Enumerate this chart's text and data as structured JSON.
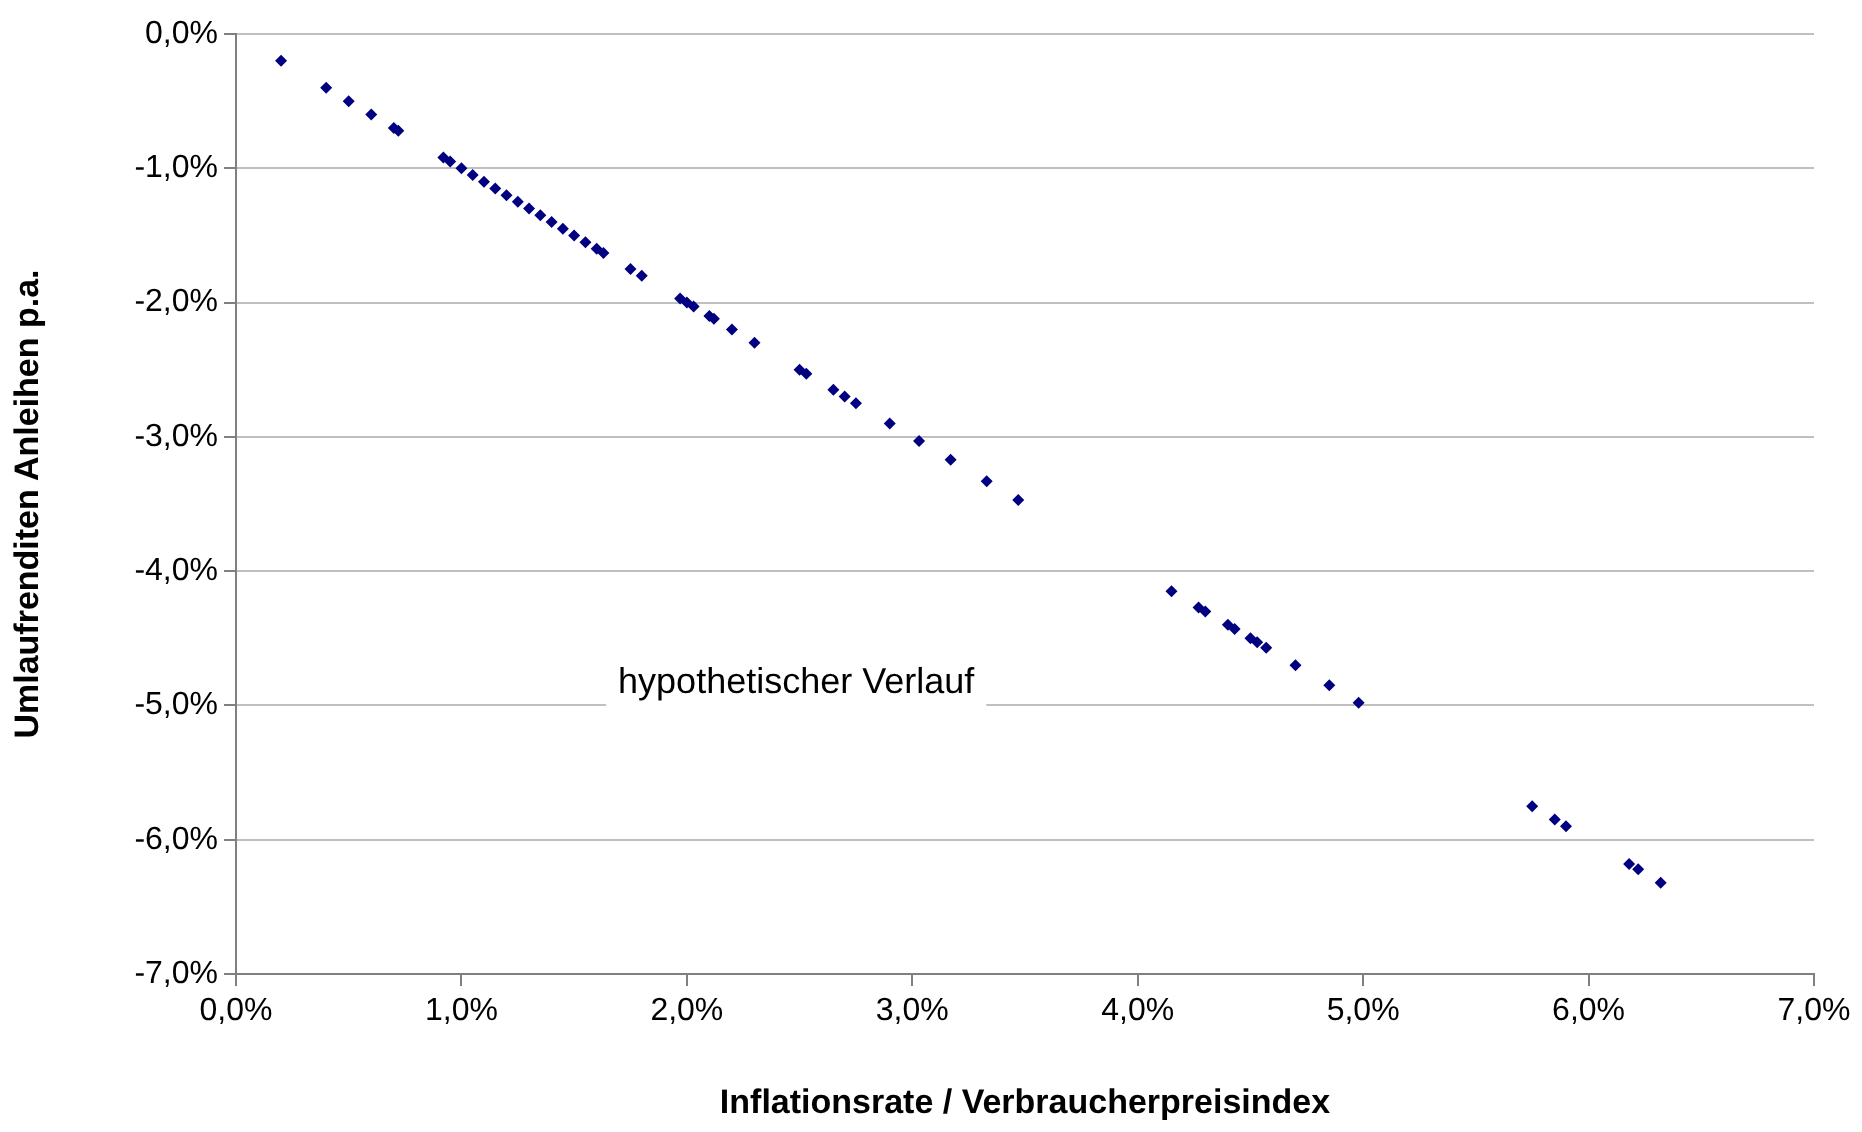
{
  "chart_data": {
    "type": "scatter",
    "xlabel": "Inflationsrate / Verbraucherpreisindex",
    "ylabel": "Umlaufrenditen Anleihen p.a.",
    "annotations": [
      "hypothetischer Verlauf"
    ],
    "x": [
      0.2,
      0.4,
      0.5,
      0.6,
      0.7,
      0.72,
      0.92,
      0.95,
      1.0,
      1.05,
      1.1,
      1.15,
      1.2,
      1.25,
      1.3,
      1.35,
      1.4,
      1.45,
      1.5,
      1.55,
      1.6,
      1.63,
      1.75,
      1.8,
      1.97,
      2.0,
      2.03,
      2.1,
      2.12,
      2.2,
      2.3,
      2.5,
      2.53,
      2.65,
      2.7,
      2.75,
      2.9,
      3.03,
      3.17,
      3.33,
      3.47,
      4.15,
      4.27,
      4.3,
      4.4,
      4.43,
      4.5,
      4.53,
      4.57,
      4.7,
      4.85,
      4.98,
      5.75,
      5.85,
      5.9,
      6.18,
      6.22,
      6.32
    ],
    "series": [
      {
        "color": "#000080",
        "values": [
          -0.2,
          -0.4,
          -0.5,
          -0.6,
          -0.7,
          -0.72,
          -0.92,
          -0.95,
          -1.0,
          -1.05,
          -1.1,
          -1.15,
          -1.2,
          -1.25,
          -1.3,
          -1.35,
          -1.4,
          -1.45,
          -1.5,
          -1.55,
          -1.6,
          -1.63,
          -1.75,
          -1.8,
          -1.97,
          -2.0,
          -2.03,
          -2.1,
          -2.12,
          -2.2,
          -2.3,
          -2.5,
          -2.53,
          -2.65,
          -2.7,
          -2.75,
          -2.9,
          -3.03,
          -3.17,
          -3.33,
          -3.47,
          -4.15,
          -4.27,
          -4.3,
          -4.4,
          -4.43,
          -4.5,
          -4.53,
          -4.57,
          -4.7,
          -4.85,
          -4.98,
          -5.75,
          -5.85,
          -5.9,
          -6.18,
          -6.22,
          -6.32
        ]
      }
    ],
    "xlim": [
      0,
      7
    ],
    "ylim": [
      -7,
      0
    ],
    "xticks": [
      {
        "value": 0,
        "label": "0,0%"
      },
      {
        "value": 1,
        "label": "1,0%"
      },
      {
        "value": 2,
        "label": "2,0%"
      },
      {
        "value": 3,
        "label": "3,0%"
      },
      {
        "value": 4,
        "label": "4,0%"
      },
      {
        "value": 5,
        "label": "5,0%"
      },
      {
        "value": 6,
        "label": "6,0%"
      },
      {
        "value": 7,
        "label": "7,0%"
      }
    ],
    "yticks": [
      {
        "value": 0,
        "label": "0,0%"
      },
      {
        "value": -1,
        "label": "-1,0%"
      },
      {
        "value": -2,
        "label": "-2,0%"
      },
      {
        "value": -3,
        "label": "-3,0%"
      },
      {
        "value": -4,
        "label": "-4,0%"
      },
      {
        "value": -5,
        "label": "-5,0%"
      },
      {
        "value": -6,
        "label": "-6,0%"
      },
      {
        "value": -7,
        "label": "-7,0%"
      }
    ],
    "grid": "y",
    "legend": false,
    "marker": "diamond"
  }
}
